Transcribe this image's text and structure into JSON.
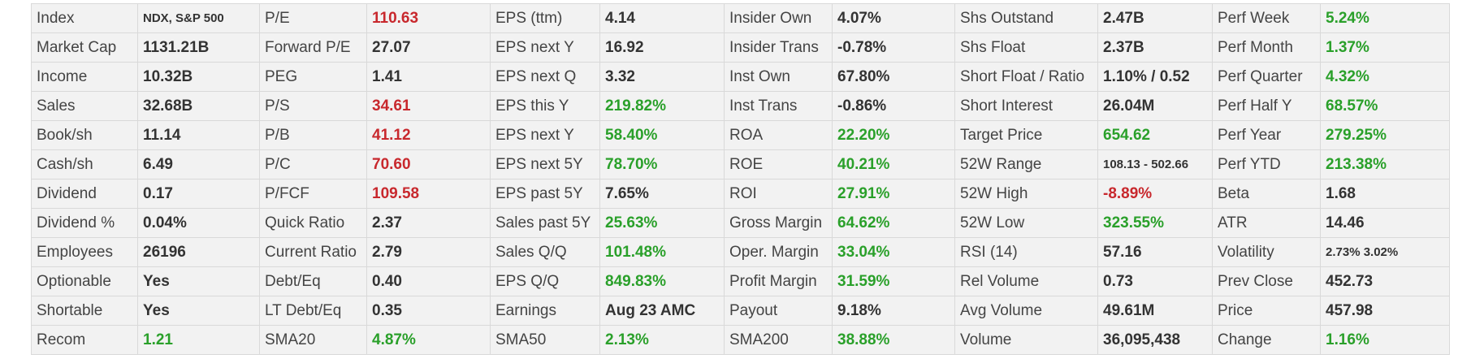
{
  "colors": {
    "red": "#c8282d",
    "green": "#2aa02a",
    "neutral": "#333333"
  },
  "rows": [
    [
      {
        "label": "Index",
        "value": "NDX, S&P 500",
        "size": "small"
      },
      {
        "label": "P/E",
        "value": "110.63",
        "color": "red"
      },
      {
        "label": "EPS (ttm)",
        "value": "4.14"
      },
      {
        "label": "Insider Own",
        "value": "4.07%"
      },
      {
        "label": "Shs Outstand",
        "value": "2.47B"
      },
      {
        "label": "Perf Week",
        "value": "5.24%",
        "color": "green"
      }
    ],
    [
      {
        "label": "Market Cap",
        "value": "1131.21B"
      },
      {
        "label": "Forward P/E",
        "value": "27.07"
      },
      {
        "label": "EPS next Y",
        "value": "16.92"
      },
      {
        "label": "Insider Trans",
        "value": "-0.78%"
      },
      {
        "label": "Shs Float",
        "value": "2.37B"
      },
      {
        "label": "Perf Month",
        "value": "1.37%",
        "color": "green"
      }
    ],
    [
      {
        "label": "Income",
        "value": "10.32B"
      },
      {
        "label": "PEG",
        "value": "1.41"
      },
      {
        "label": "EPS next Q",
        "value": "3.32"
      },
      {
        "label": "Inst Own",
        "value": "67.80%"
      },
      {
        "label": "Short Float / Ratio",
        "value": "1.10% / 0.52"
      },
      {
        "label": "Perf Quarter",
        "value": "4.32%",
        "color": "green"
      }
    ],
    [
      {
        "label": "Sales",
        "value": "32.68B"
      },
      {
        "label": "P/S",
        "value": "34.61",
        "color": "red"
      },
      {
        "label": "EPS this Y",
        "value": "219.82%",
        "color": "green"
      },
      {
        "label": "Inst Trans",
        "value": "-0.86%"
      },
      {
        "label": "Short Interest",
        "value": "26.04M"
      },
      {
        "label": "Perf Half Y",
        "value": "68.57%",
        "color": "green"
      }
    ],
    [
      {
        "label": "Book/sh",
        "value": "11.14"
      },
      {
        "label": "P/B",
        "value": "41.12",
        "color": "red"
      },
      {
        "label": "EPS next Y",
        "value": "58.40%",
        "color": "green"
      },
      {
        "label": "ROA",
        "value": "22.20%",
        "color": "green"
      },
      {
        "label": "Target Price",
        "value": "654.62",
        "color": "green"
      },
      {
        "label": "Perf Year",
        "value": "279.25%",
        "color": "green"
      }
    ],
    [
      {
        "label": "Cash/sh",
        "value": "6.49"
      },
      {
        "label": "P/C",
        "value": "70.60",
        "color": "red"
      },
      {
        "label": "EPS next 5Y",
        "value": "78.70%",
        "color": "green"
      },
      {
        "label": "ROE",
        "value": "40.21%",
        "color": "green"
      },
      {
        "label": "52W Range",
        "value": "108.13 - 502.66",
        "size": "small"
      },
      {
        "label": "Perf YTD",
        "value": "213.38%",
        "color": "green"
      }
    ],
    [
      {
        "label": "Dividend",
        "value": "0.17"
      },
      {
        "label": "P/FCF",
        "value": "109.58",
        "color": "red"
      },
      {
        "label": "EPS past 5Y",
        "value": "7.65%"
      },
      {
        "label": "ROI",
        "value": "27.91%",
        "color": "green"
      },
      {
        "label": "52W High",
        "value": "-8.89%",
        "color": "red"
      },
      {
        "label": "Beta",
        "value": "1.68"
      }
    ],
    [
      {
        "label": "Dividend %",
        "value": "0.04%"
      },
      {
        "label": "Quick Ratio",
        "value": "2.37"
      },
      {
        "label": "Sales past 5Y",
        "value": "25.63%",
        "color": "green"
      },
      {
        "label": "Gross Margin",
        "value": "64.62%",
        "color": "green"
      },
      {
        "label": "52W Low",
        "value": "323.55%",
        "color": "green"
      },
      {
        "label": "ATR",
        "value": "14.46"
      }
    ],
    [
      {
        "label": "Employees",
        "value": "26196"
      },
      {
        "label": "Current Ratio",
        "value": "2.79"
      },
      {
        "label": "Sales Q/Q",
        "value": "101.48%",
        "color": "green"
      },
      {
        "label": "Oper. Margin",
        "value": "33.04%",
        "color": "green"
      },
      {
        "label": "RSI (14)",
        "value": "57.16"
      },
      {
        "label": "Volatility",
        "value": "2.73% 3.02%",
        "size": "small"
      }
    ],
    [
      {
        "label": "Optionable",
        "value": "Yes"
      },
      {
        "label": "Debt/Eq",
        "value": "0.40"
      },
      {
        "label": "EPS Q/Q",
        "value": "849.83%",
        "color": "green"
      },
      {
        "label": "Profit Margin",
        "value": "31.59%",
        "color": "green"
      },
      {
        "label": "Rel Volume",
        "value": "0.73"
      },
      {
        "label": "Prev Close",
        "value": "452.73"
      }
    ],
    [
      {
        "label": "Shortable",
        "value": "Yes"
      },
      {
        "label": "LT Debt/Eq",
        "value": "0.35"
      },
      {
        "label": "Earnings",
        "value": "Aug 23 AMC"
      },
      {
        "label": "Payout",
        "value": "9.18%"
      },
      {
        "label": "Avg Volume",
        "value": "49.61M"
      },
      {
        "label": "Price",
        "value": "457.98"
      }
    ],
    [
      {
        "label": "Recom",
        "value": "1.21",
        "color": "green"
      },
      {
        "label": "SMA20",
        "value": "4.87%",
        "color": "green"
      },
      {
        "label": "SMA50",
        "value": "2.13%",
        "color": "green"
      },
      {
        "label": "SMA200",
        "value": "38.88%",
        "color": "green"
      },
      {
        "label": "Volume",
        "value": "36,095,438"
      },
      {
        "label": "Change",
        "value": "1.16%",
        "color": "green"
      }
    ]
  ]
}
